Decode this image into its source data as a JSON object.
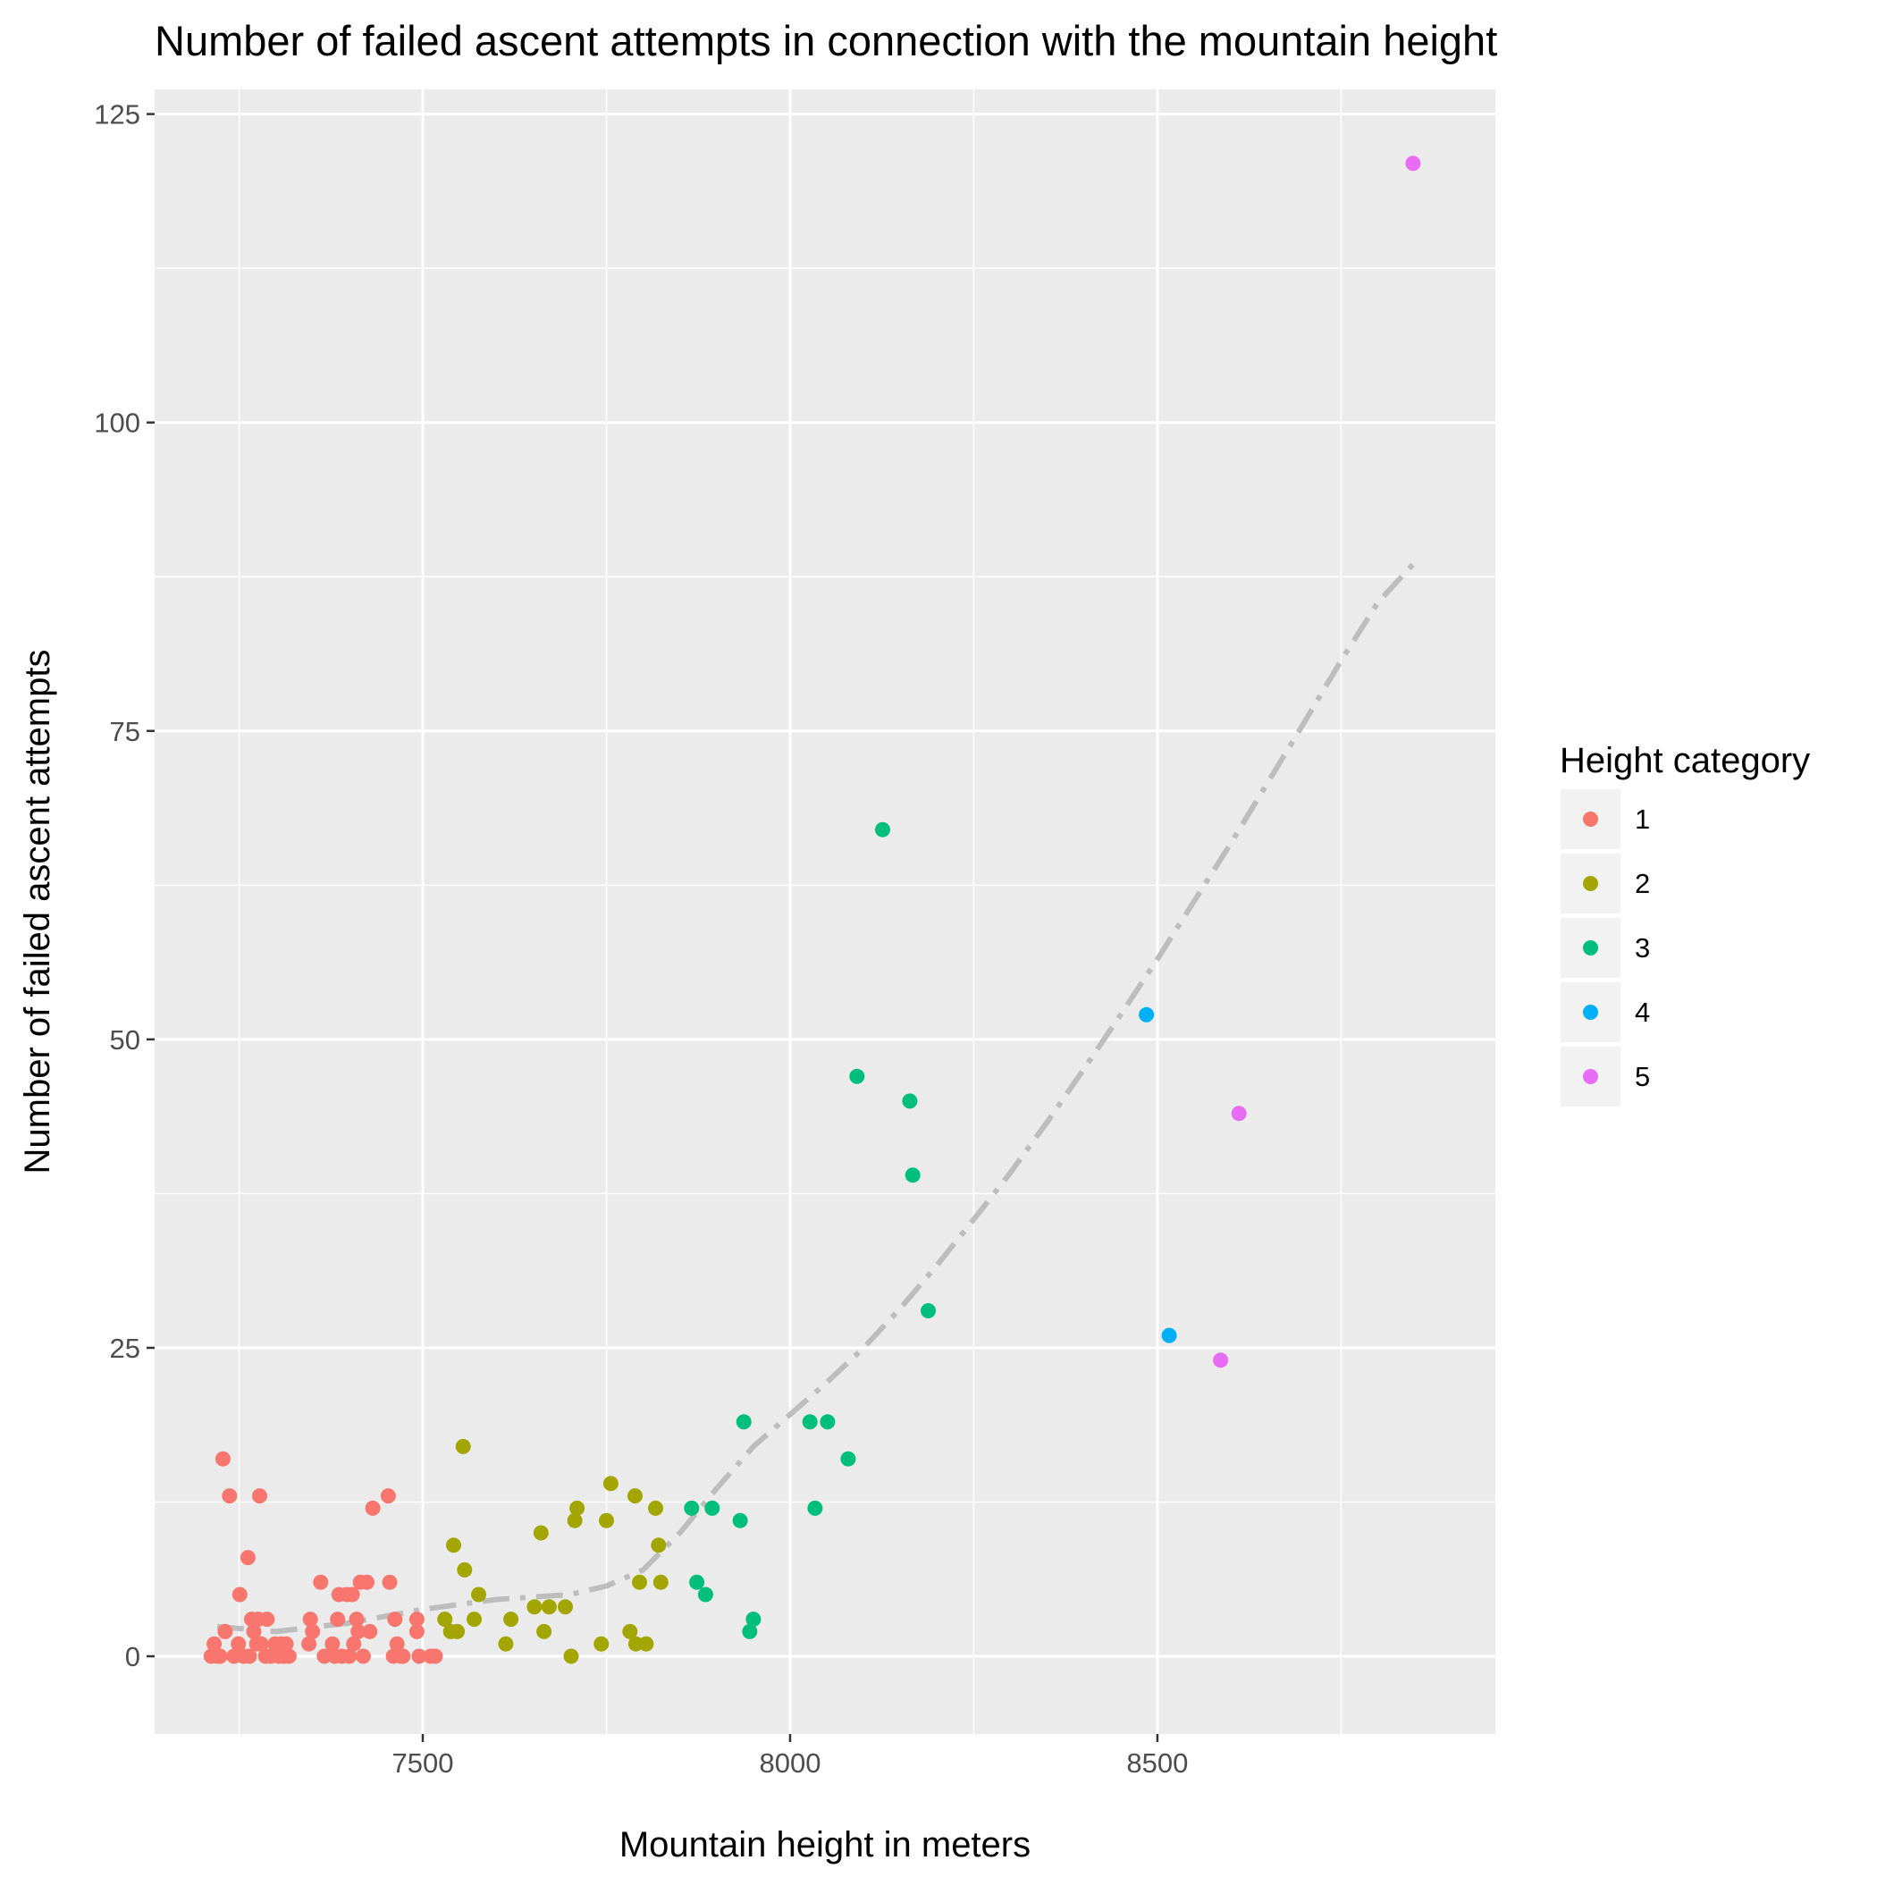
{
  "chart_data": {
    "type": "scatter",
    "title": "Number of failed ascent attempts in connection with the mountain height",
    "xlabel": "Mountain height in meters",
    "ylabel": "Number of failed ascent attempts",
    "xlim": [
      7135,
      8960
    ],
    "ylim": [
      -6.3,
      127.0
    ],
    "x_ticks": [
      7500,
      8000,
      8500
    ],
    "x_tick_labels": [
      "7500",
      "8000",
      "8500"
    ],
    "y_ticks": [
      0,
      25,
      50,
      75,
      100,
      125
    ],
    "y_tick_labels": [
      "0",
      "25",
      "50",
      "75",
      "100",
      "125"
    ],
    "grid": true,
    "legend": {
      "title": "Height category",
      "position": "right",
      "entries": [
        {
          "label": "1",
          "color": "#F8766D"
        },
        {
          "label": "2",
          "color": "#A3A500"
        },
        {
          "label": "3",
          "color": "#00BF7D"
        },
        {
          "label": "4",
          "color": "#00B0F6"
        },
        {
          "label": "5",
          "color": "#E76BF3"
        }
      ]
    },
    "trend_line": {
      "style": "dash-dot",
      "color": "#bdbdbd",
      "x": [
        7220,
        7300,
        7400,
        7500,
        7600,
        7700,
        7750,
        7800,
        7850,
        7900,
        7950,
        8000,
        8050,
        8100,
        8150,
        8200,
        8250,
        8300,
        8350,
        8400,
        8450,
        8500,
        8550,
        8600,
        8650,
        8700,
        8750,
        8800,
        8848
      ],
      "y": [
        2.4,
        2.0,
        2.7,
        3.8,
        4.6,
        5.0,
        5.7,
        7.0,
        10.0,
        13.6,
        17.0,
        19.6,
        22.2,
        25.0,
        28.2,
        31.7,
        35.4,
        39.2,
        43.3,
        47.6,
        52.0,
        56.5,
        61.2,
        65.9,
        70.8,
        75.7,
        80.7,
        85.4,
        88.5
      ]
    },
    "series": [
      {
        "name": "1",
        "color": "#F8766D",
        "points": [
          [
            7212,
            0
          ],
          [
            7216,
            1
          ],
          [
            7220,
            0
          ],
          [
            7224,
            0
          ],
          [
            7228,
            16
          ],
          [
            7231,
            2
          ],
          [
            7237,
            13
          ],
          [
            7243,
            0
          ],
          [
            7249,
            1
          ],
          [
            7251,
            5
          ],
          [
            7256,
            0
          ],
          [
            7262,
            8
          ],
          [
            7264,
            0
          ],
          [
            7267,
            3
          ],
          [
            7270,
            2
          ],
          [
            7274,
            1
          ],
          [
            7276,
            3
          ],
          [
            7278,
            13
          ],
          [
            7280,
            1
          ],
          [
            7286,
            0
          ],
          [
            7288,
            3
          ],
          [
            7293,
            0
          ],
          [
            7299,
            1
          ],
          [
            7304,
            0
          ],
          [
            7307,
            1
          ],
          [
            7311,
            0
          ],
          [
            7314,
            1
          ],
          [
            7318,
            0
          ],
          [
            7345,
            1
          ],
          [
            7347,
            3
          ],
          [
            7350,
            2
          ],
          [
            7361,
            6
          ],
          [
            7366,
            0
          ],
          [
            7377,
            1
          ],
          [
            7380,
            0
          ],
          [
            7384,
            3
          ],
          [
            7386,
            5
          ],
          [
            7390,
            0
          ],
          [
            7397,
            5
          ],
          [
            7400,
            0
          ],
          [
            7404,
            5
          ],
          [
            7406,
            1
          ],
          [
            7410,
            3
          ],
          [
            7412,
            2
          ],
          [
            7415,
            6
          ],
          [
            7419,
            0
          ],
          [
            7424,
            6
          ],
          [
            7428,
            2
          ],
          [
            7432,
            12
          ],
          [
            7453,
            13
          ],
          [
            7455,
            6
          ],
          [
            7460,
            0
          ],
          [
            7462,
            3
          ],
          [
            7465,
            1
          ],
          [
            7470,
            0
          ],
          [
            7473,
            0
          ],
          [
            7492,
            3
          ],
          [
            7492,
            2
          ],
          [
            7495,
            0
          ],
          [
            7511,
            0
          ],
          [
            7517,
            0
          ]
        ]
      },
      {
        "name": "2",
        "color": "#A3A500",
        "points": [
          [
            7530,
            3
          ],
          [
            7538,
            2
          ],
          [
            7542,
            9
          ],
          [
            7547,
            2
          ],
          [
            7555,
            17
          ],
          [
            7557,
            7
          ],
          [
            7570,
            3
          ],
          [
            7576,
            5
          ],
          [
            7613,
            1
          ],
          [
            7620,
            3
          ],
          [
            7652,
            4
          ],
          [
            7661,
            10
          ],
          [
            7665,
            2
          ],
          [
            7672,
            4
          ],
          [
            7694,
            4
          ],
          [
            7702,
            0
          ],
          [
            7707,
            11
          ],
          [
            7710,
            12
          ],
          [
            7743,
            1
          ],
          [
            7750,
            11
          ],
          [
            7756,
            14
          ],
          [
            7782,
            2
          ],
          [
            7789,
            13
          ],
          [
            7790,
            1
          ],
          [
            7795,
            6
          ],
          [
            7804,
            1
          ],
          [
            7817,
            12
          ],
          [
            7821,
            9
          ],
          [
            7824,
            6
          ]
        ]
      },
      {
        "name": "3",
        "color": "#00BF7D",
        "points": [
          [
            7866,
            12
          ],
          [
            7873,
            6
          ],
          [
            7885,
            5
          ],
          [
            7894,
            12
          ],
          [
            7932,
            11
          ],
          [
            7937,
            19
          ],
          [
            7945,
            2
          ],
          [
            7950,
            3
          ],
          [
            8027,
            19
          ],
          [
            8034,
            12
          ],
          [
            8051,
            19
          ],
          [
            8079,
            16
          ],
          [
            8091,
            47
          ],
          [
            8126,
            67
          ],
          [
            8163,
            45
          ],
          [
            8167,
            39
          ],
          [
            8188,
            28
          ]
        ]
      },
      {
        "name": "4",
        "color": "#00B0F6",
        "points": [
          [
            8485,
            52
          ],
          [
            8516,
            26
          ]
        ]
      },
      {
        "name": "5",
        "color": "#E76BF3",
        "points": [
          [
            8586,
            24
          ],
          [
            8611,
            44
          ],
          [
            8848,
            121
          ]
        ]
      }
    ]
  }
}
